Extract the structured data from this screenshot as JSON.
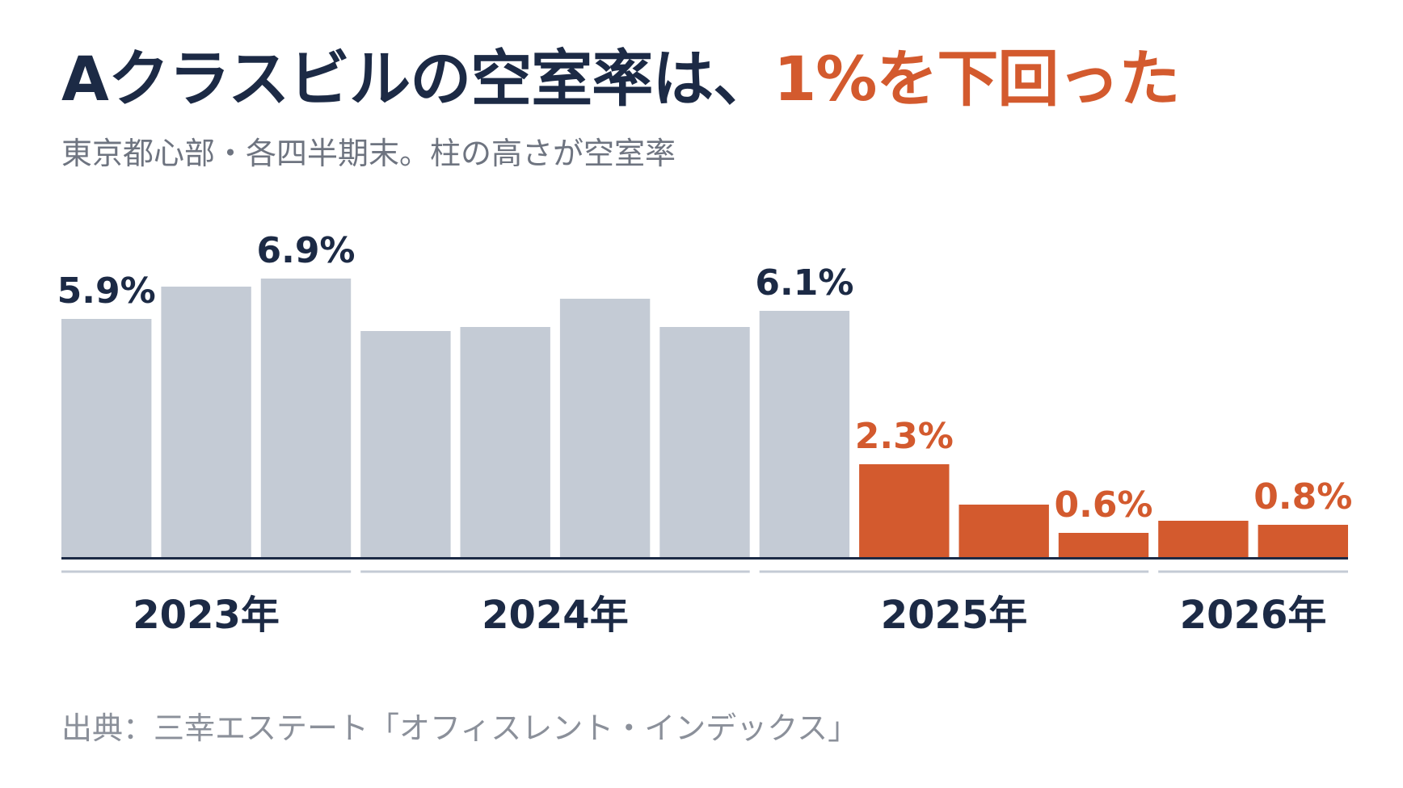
{
  "title": {
    "lead": "Aクラスビルの空室率は、",
    "accent": "1%を下回った"
  },
  "subtitle": "東京都心部・各四半期末。柱の高さが空室率",
  "source": "出典：三幸エステート「オフィスレント・インデックス」",
  "colors": {
    "title": "#1c2a45",
    "accent": "#d35a2e",
    "bar_muted": "#c4cbd5",
    "bar_highlight": "#d35a2e",
    "baseline": "#1c2a45",
    "group_rule": "#c4cbd5",
    "subtitle": "#6e7480",
    "source": "#8b909a"
  },
  "chart_data": {
    "type": "bar",
    "unit": "%",
    "ylim": [
      0,
      7.0
    ],
    "grid": false,
    "groups": [
      {
        "label": "2023年",
        "count": 3
      },
      {
        "label": "2024年",
        "count": 4
      },
      {
        "label": "2025年",
        "count": 4
      },
      {
        "label": "2026年",
        "count": 2
      }
    ],
    "values": [
      5.9,
      6.7,
      6.9,
      5.6,
      5.7,
      6.4,
      5.7,
      6.1,
      2.3,
      1.3,
      0.6,
      0.9,
      0.8
    ],
    "highlighted": [
      false,
      false,
      false,
      false,
      false,
      false,
      false,
      false,
      true,
      true,
      true,
      true,
      true
    ],
    "data_labels": [
      "5.9%",
      "",
      "6.9%",
      "",
      "",
      "",
      "",
      "6.1%",
      "2.3%",
      "",
      "0.6%",
      "",
      "0.8%"
    ]
  }
}
